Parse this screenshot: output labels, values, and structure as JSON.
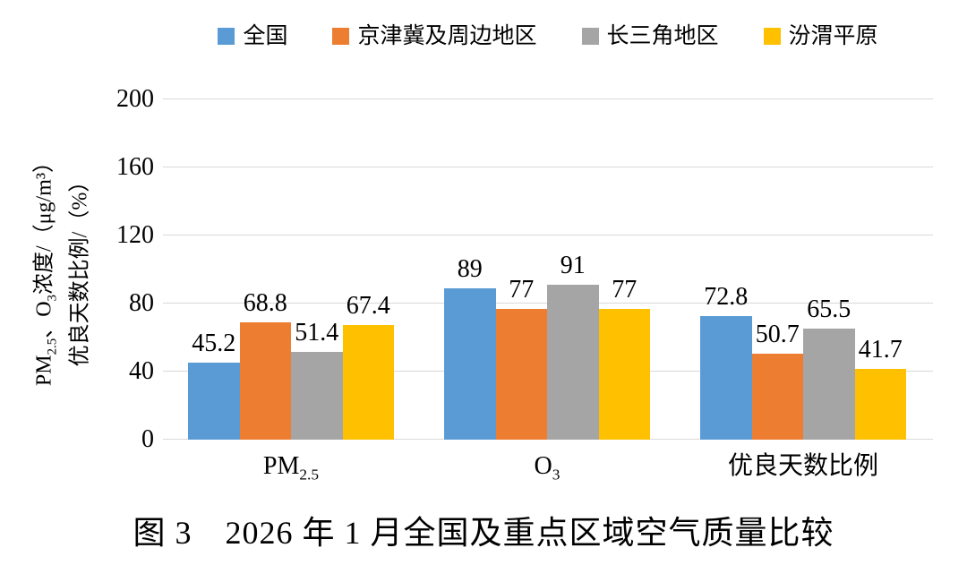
{
  "figure": {
    "caption": "图 3　2026 年 1 月全国及重点区域空气质量比较"
  },
  "chart_data": {
    "type": "bar",
    "title": "",
    "categories": [
      {
        "runs": [
          {
            "t": "PM"
          },
          {
            "t": "2.5",
            "sub": true
          }
        ]
      },
      {
        "runs": [
          {
            "t": "O"
          },
          {
            "t": "3",
            "sub": true
          }
        ]
      },
      {
        "runs": [
          {
            "t": "优良天数比例"
          }
        ]
      }
    ],
    "series": [
      {
        "name": "全国",
        "color": "#5B9BD5",
        "values": [
          45.2,
          89,
          72.8
        ]
      },
      {
        "name": "京津冀及周边地区",
        "color": "#ED7D31",
        "values": [
          68.8,
          77,
          50.7
        ]
      },
      {
        "name": "长三角地区",
        "color": "#A5A5A5",
        "values": [
          51.4,
          91,
          65.5
        ]
      },
      {
        "name": "汾渭平原",
        "color": "#FFC000",
        "values": [
          67.4,
          77,
          41.7
        ]
      }
    ],
    "ylabel_lines": [
      {
        "runs": [
          {
            "t": "PM"
          },
          {
            "t": "2.5",
            "sub": true
          },
          {
            "t": "、O"
          },
          {
            "t": "3",
            "sub": true
          },
          {
            "t": "浓度/（μg/m³）"
          }
        ]
      },
      {
        "runs": [
          {
            "t": "优良天数比例/（%）"
          }
        ]
      }
    ],
    "xlabel": "",
    "ylim": [
      0,
      200
    ],
    "yticks": [
      0,
      40,
      80,
      120,
      160,
      200
    ],
    "grid": true,
    "legend_position": "top"
  },
  "colors": {
    "gridline": "#D9D9D9",
    "text": "#000000",
    "background": "#FFFFFF"
  }
}
